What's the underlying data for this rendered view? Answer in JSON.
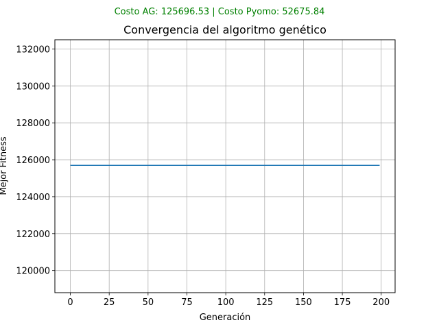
{
  "suptitle": "Costo AG: 125696.53 |   Costo Pyomo: 52675.84",
  "colors": {
    "suptitle": "#008000",
    "series": "#1f77b4",
    "grid": "#b0b0b0",
    "text": "#000000"
  },
  "chart_data": {
    "type": "line",
    "title": "Convergencia del algoritmo genético",
    "xlabel": "Generación",
    "ylabel": "Mejor Fitness",
    "xlim": [
      -9.95,
      208.95
    ],
    "ylim": [
      118800,
      132500
    ],
    "xticks": [
      0,
      25,
      50,
      75,
      100,
      125,
      150,
      175,
      200
    ],
    "yticks": [
      120000,
      122000,
      124000,
      126000,
      128000,
      130000,
      132000
    ],
    "grid": true,
    "series": [
      {
        "x": [
          0,
          199
        ],
        "values": [
          125696.53,
          125696.53
        ]
      }
    ]
  }
}
